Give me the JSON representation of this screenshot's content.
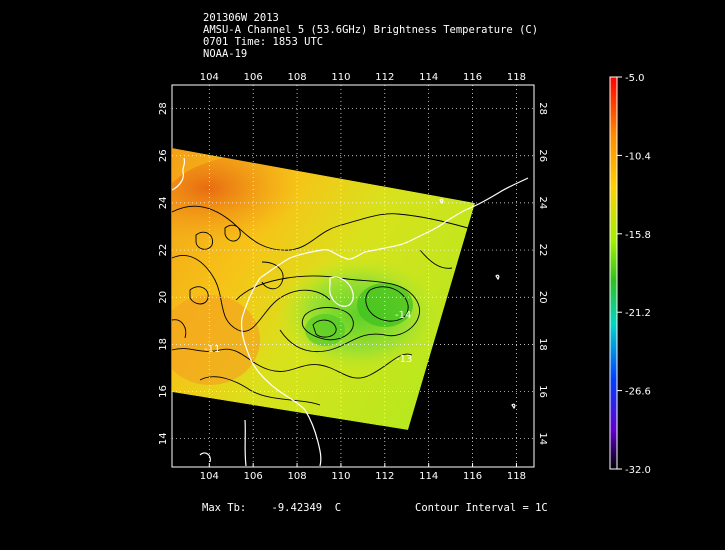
{
  "header": {
    "line1": "201306W 2013",
    "line2": "AMSU-A Channel 5 (53.6GHz) Brightness Temperature (C)",
    "line3": "0701 Time: 1853 UTC",
    "line4": "NOAA-19"
  },
  "map": {
    "lon_ticks": [
      "104",
      "106",
      "108",
      "110",
      "112",
      "114",
      "116",
      "118"
    ],
    "lat_ticks": [
      "14",
      "16",
      "18",
      "20",
      "22",
      "24",
      "26",
      "28"
    ],
    "lon_range": [
      102.3,
      118.8
    ],
    "lat_range": [
      12.8,
      29.0
    ],
    "contour_labels": [
      "-14",
      "-13",
      "-11"
    ],
    "land_outline_color": "#ffffff",
    "graticule": "dotted"
  },
  "colorbar": {
    "labels": [
      "-5.0",
      "-10.4",
      "-15.8",
      "-21.2",
      "-26.6",
      "-32.0"
    ],
    "colors": [
      "#ff0000",
      "#ff8c00",
      "#ffd000",
      "#c8f000",
      "#30c020",
      "#00d8c8",
      "#0040ff",
      "#6000d0",
      "#000000"
    ]
  },
  "footer": {
    "max_tb": "Max Tb:    -9.42349  C",
    "contour_interval": "Contour Interval = 1C"
  }
}
